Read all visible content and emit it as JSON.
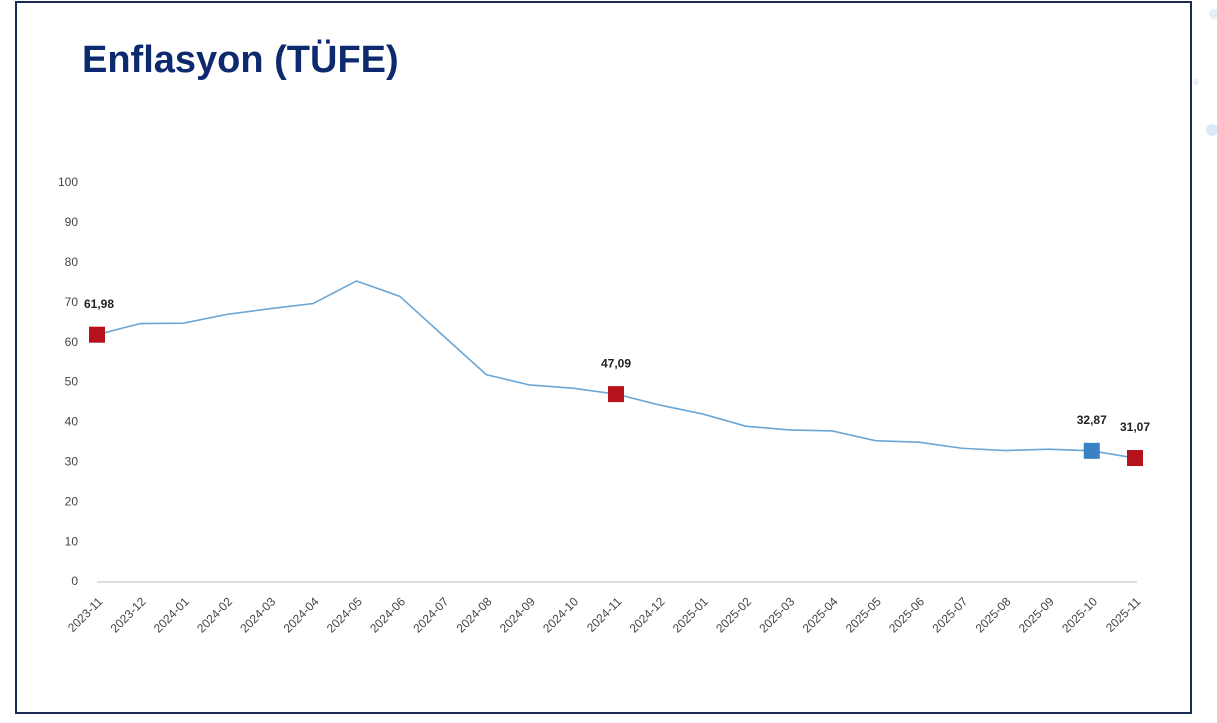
{
  "chart_data": {
    "type": "line",
    "title": "Enflasyon (TÜFE)",
    "categories": [
      "2023-11",
      "2023-12",
      "2024-01",
      "2024-02",
      "2024-03",
      "2024-04",
      "2024-05",
      "2024-06",
      "2024-07",
      "2024-08",
      "2024-09",
      "2024-10",
      "2024-11",
      "2024-12",
      "2025-01",
      "2025-02",
      "2025-03",
      "2025-04",
      "2025-05",
      "2025-06",
      "2025-07",
      "2025-08",
      "2025-09",
      "2025-10",
      "2025-11"
    ],
    "series": [
      {
        "color": "#6aa6d6",
        "values": [
          61.98,
          64.77,
          64.86,
          67.07,
          68.5,
          69.8,
          75.45,
          71.6,
          61.78,
          51.97,
          49.38,
          48.58,
          47.09,
          44.38,
          42.12,
          39.05,
          38.1,
          37.86,
          35.41,
          35.05,
          33.52,
          32.95,
          33.29,
          32.87,
          31.07
        ],
        "value_labels": [
          "61,98",
          null,
          null,
          null,
          null,
          null,
          null,
          null,
          null,
          null,
          null,
          null,
          "47,09",
          null,
          null,
          null,
          null,
          null,
          null,
          null,
          null,
          null,
          null,
          "32,87",
          "31,07"
        ],
        "marker_colors": [
          "#b5121b",
          null,
          null,
          null,
          null,
          null,
          null,
          null,
          null,
          null,
          null,
          null,
          "#b5121b",
          null,
          null,
          null,
          null,
          null,
          null,
          null,
          null,
          null,
          null,
          "#3a82c4",
          "#b5121b"
        ]
      }
    ],
    "ylim": [
      0,
      100
    ],
    "yticks": [
      0,
      10,
      20,
      30,
      40,
      50,
      60,
      70,
      80,
      90,
      100
    ],
    "grid": false
  }
}
